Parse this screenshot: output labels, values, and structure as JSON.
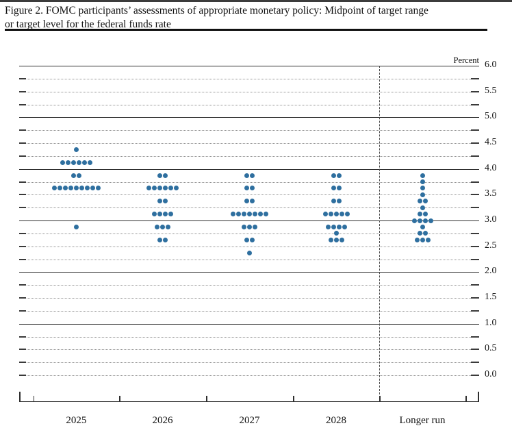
{
  "figure": {
    "title_line1": "Figure 2. FOMC participants’ assessments of appropriate monetary policy: Midpoint of target range",
    "title_line2": "or target level for the federal funds rate"
  },
  "chart_data": {
    "type": "scatter",
    "subtype": "fomc-dot-plot",
    "title": "Figure 2. FOMC participants’ assessments of appropriate monetary policy: Midpoint of target range or target level for the federal funds rate",
    "unit_label": "Percent",
    "categories": [
      "2025",
      "2026",
      "2027",
      "2028",
      "Longer run"
    ],
    "ylim": [
      0.0,
      6.0
    ],
    "y_tick_step": 0.5,
    "y_grid_step": 0.25,
    "y_tick_labels": [
      "6.0",
      "5.5",
      "5.0",
      "4.5",
      "4.0",
      "3.5",
      "3.0",
      "2.5",
      "2.0",
      "1.5",
      "1.0",
      "0.5",
      "0.0"
    ],
    "grid": "solid lines at integers, dotted lines with edge ticks at quarter points",
    "legend_position": "none",
    "separator": "dashed vertical line before Longer run column",
    "participants_per_column": 19,
    "series": [
      {
        "name": "2025",
        "dots": [
          {
            "rate": 4.375,
            "count": 1
          },
          {
            "rate": 4.125,
            "count": 6
          },
          {
            "rate": 3.875,
            "count": 2
          },
          {
            "rate": 3.625,
            "count": 9
          },
          {
            "rate": 2.875,
            "count": 1
          }
        ]
      },
      {
        "name": "2026",
        "dots": [
          {
            "rate": 3.875,
            "count": 2
          },
          {
            "rate": 3.625,
            "count": 6
          },
          {
            "rate": 3.375,
            "count": 2
          },
          {
            "rate": 3.125,
            "count": 4
          },
          {
            "rate": 2.875,
            "count": 3
          },
          {
            "rate": 2.625,
            "count": 2
          }
        ]
      },
      {
        "name": "2027",
        "dots": [
          {
            "rate": 3.875,
            "count": 2
          },
          {
            "rate": 3.625,
            "count": 2
          },
          {
            "rate": 3.375,
            "count": 2
          },
          {
            "rate": 3.125,
            "count": 7
          },
          {
            "rate": 2.875,
            "count": 3
          },
          {
            "rate": 2.625,
            "count": 2
          },
          {
            "rate": 2.375,
            "count": 1
          }
        ]
      },
      {
        "name": "2028",
        "dots": [
          {
            "rate": 3.875,
            "count": 2
          },
          {
            "rate": 3.625,
            "count": 2
          },
          {
            "rate": 3.375,
            "count": 2
          },
          {
            "rate": 3.125,
            "count": 5
          },
          {
            "rate": 2.875,
            "count": 4
          },
          {
            "rate": 2.75,
            "count": 1
          },
          {
            "rate": 2.625,
            "count": 3
          }
        ]
      },
      {
        "name": "Longer run",
        "dots": [
          {
            "rate": 3.875,
            "count": 1
          },
          {
            "rate": 3.75,
            "count": 1
          },
          {
            "rate": 3.625,
            "count": 1
          },
          {
            "rate": 3.5,
            "count": 1
          },
          {
            "rate": 3.375,
            "count": 2
          },
          {
            "rate": 3.25,
            "count": 1
          },
          {
            "rate": 3.125,
            "count": 2
          },
          {
            "rate": 3.0,
            "count": 4
          },
          {
            "rate": 2.875,
            "count": 1
          },
          {
            "rate": 2.75,
            "count": 2
          },
          {
            "rate": 2.625,
            "count": 3
          }
        ]
      }
    ],
    "colors": {
      "dot": "#2e6f9f",
      "solid_line": "#2b2b2b",
      "dotted_line": "#8f8f8f",
      "axis": "#2e2e2e",
      "text": "#111111",
      "background": "#ffffff"
    }
  }
}
